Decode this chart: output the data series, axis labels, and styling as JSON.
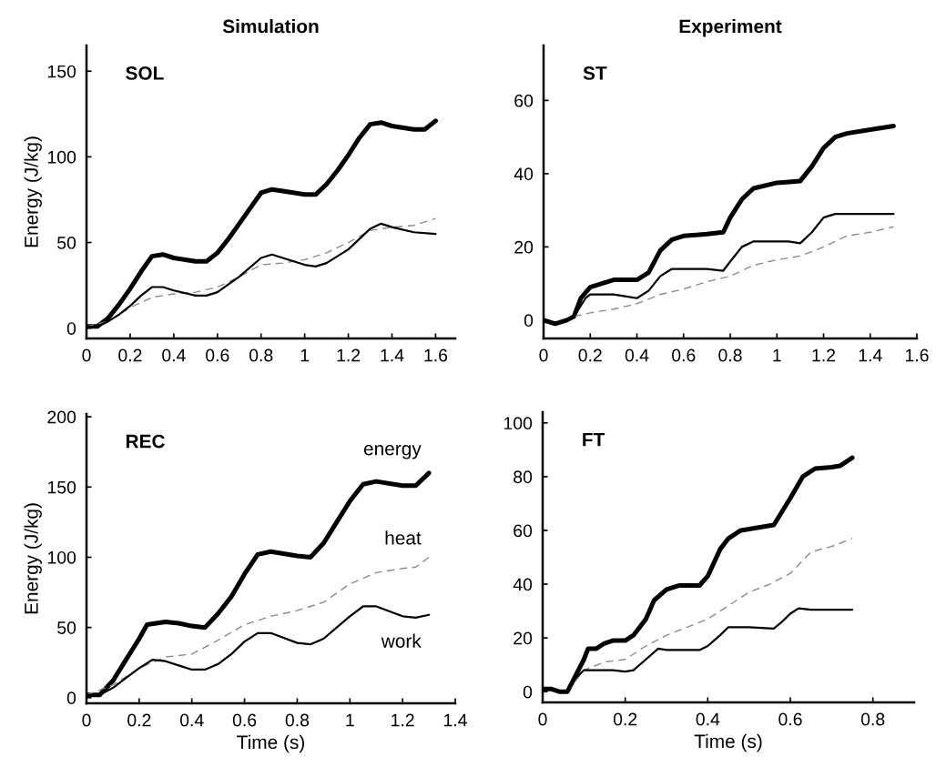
{
  "chart_data": [
    {
      "type": "line",
      "title": "Simulation",
      "ylabel": "Energy (J/kg)",
      "annotations": [
        "SOL"
      ],
      "xlim": [
        0,
        1.69
      ],
      "xticks": [
        0,
        0.2,
        0.4,
        0.6,
        0.8,
        1,
        1.2,
        1.4,
        1.6
      ],
      "ylim": [
        -6,
        165
      ],
      "yticks": [
        0,
        50,
        100,
        150
      ],
      "grid": false,
      "legend": false,
      "series": [
        {
          "color": "#000000",
          "x": [
            0,
            0.05,
            0.1,
            0.15,
            0.2,
            0.25,
            0.3,
            0.35,
            0.4,
            0.5,
            0.55,
            0.6,
            0.65,
            0.7,
            0.75,
            0.8,
            0.85,
            0.9,
            1.0,
            1.05,
            1.1,
            1.15,
            1.2,
            1.25,
            1.3,
            1.35,
            1.4,
            1.5,
            1.55,
            1.6
          ],
          "values": [
            1,
            1,
            6,
            14,
            23,
            33,
            42,
            43,
            41,
            39,
            39,
            44,
            52,
            61,
            70,
            79,
            81,
            80,
            78,
            78,
            84,
            92,
            101,
            111,
            119,
            120,
            118,
            116,
            116,
            121
          ]
        },
        {
          "color": "#8c8c8c",
          "line_style": "dashed",
          "x": [
            0,
            0.1,
            0.2,
            0.3,
            0.4,
            0.5,
            0.6,
            0.7,
            0.8,
            0.9,
            1.0,
            1.1,
            1.2,
            1.3,
            1.4,
            1.5,
            1.6
          ],
          "values": [
            1,
            4,
            12,
            18,
            20,
            21,
            24,
            30,
            37,
            38,
            40,
            44,
            50,
            57,
            59,
            60,
            64
          ]
        },
        {
          "color": "#000000",
          "x": [
            0,
            0.05,
            0.1,
            0.15,
            0.2,
            0.25,
            0.3,
            0.35,
            0.4,
            0.5,
            0.55,
            0.6,
            0.7,
            0.8,
            0.85,
            0.9,
            1.0,
            1.05,
            1.1,
            1.2,
            1.3,
            1.35,
            1.4,
            1.5,
            1.6
          ],
          "values": [
            1,
            1,
            4,
            8,
            13,
            19,
            24,
            24,
            22,
            19,
            19,
            21,
            30,
            41,
            43,
            41,
            37,
            36,
            38,
            46,
            58,
            61,
            59,
            56,
            55
          ]
        }
      ]
    },
    {
      "type": "line",
      "title": "Experiment",
      "annotations": [
        "ST"
      ],
      "xlim": [
        0,
        1.6
      ],
      "xticks": [
        0,
        0.2,
        0.4,
        0.6,
        0.8,
        1,
        1.2,
        1.4,
        1.6
      ],
      "ylim": [
        -5,
        75
      ],
      "yticks": [
        0,
        20,
        40,
        60
      ],
      "grid": false,
      "legend": false,
      "series": [
        {
          "color": "#000000",
          "x": [
            0,
            0.05,
            0.1,
            0.13,
            0.16,
            0.2,
            0.25,
            0.3,
            0.4,
            0.45,
            0.5,
            0.55,
            0.6,
            0.7,
            0.77,
            0.8,
            0.85,
            0.9,
            1.0,
            1.1,
            1.15,
            1.2,
            1.25,
            1.3,
            1.4,
            1.5
          ],
          "values": [
            0,
            -1,
            0,
            1,
            6,
            9,
            10,
            11,
            11,
            13,
            19,
            22,
            23,
            23.5,
            24,
            28,
            33,
            36,
            37.5,
            38,
            42,
            47,
            50,
            51,
            52,
            53
          ]
        },
        {
          "color": "#8c8c8c",
          "line_style": "dashed",
          "x": [
            0.13,
            0.2,
            0.3,
            0.4,
            0.5,
            0.6,
            0.7,
            0.8,
            0.9,
            1.0,
            1.1,
            1.2,
            1.3,
            1.4,
            1.5
          ],
          "values": [
            1,
            2,
            3,
            4.5,
            7,
            8.5,
            10.5,
            12,
            15,
            16.5,
            17.5,
            20,
            23,
            24,
            25.5
          ]
        },
        {
          "color": "#000000",
          "x": [
            0,
            0.05,
            0.1,
            0.13,
            0.18,
            0.2,
            0.3,
            0.35,
            0.4,
            0.45,
            0.5,
            0.55,
            0.6,
            0.7,
            0.77,
            0.8,
            0.85,
            0.9,
            1.0,
            1.05,
            1.1,
            1.15,
            1.2,
            1.25,
            1.4,
            1.5
          ],
          "values": [
            0,
            -1,
            0,
            1,
            6,
            7,
            7,
            6.5,
            6,
            8,
            12,
            14,
            14,
            14,
            13.5,
            16,
            20,
            21.5,
            21.5,
            21.5,
            21,
            24,
            28,
            29,
            29,
            29
          ]
        }
      ]
    },
    {
      "type": "line",
      "xlabel": "Time (s)",
      "ylabel": "Energy (J/kg)",
      "annotations": [
        "REC"
      ],
      "xlim": [
        0,
        1.4
      ],
      "xticks": [
        0,
        0.2,
        0.4,
        0.6,
        0.8,
        1,
        1.2,
        1.4
      ],
      "ylim": [
        -4,
        202
      ],
      "yticks": [
        0,
        50,
        100,
        150,
        200
      ],
      "grid": false,
      "legend": false,
      "series": [
        {
          "name": "energy",
          "color": "#000000",
          "x": [
            0,
            0.05,
            0.1,
            0.15,
            0.2,
            0.23,
            0.3,
            0.35,
            0.4,
            0.45,
            0.5,
            0.55,
            0.6,
            0.65,
            0.7,
            0.8,
            0.85,
            0.9,
            0.95,
            1.0,
            1.05,
            1.1,
            1.2,
            1.25,
            1.3
          ],
          "values": [
            2,
            2,
            12,
            27,
            42,
            52,
            54,
            53,
            51,
            50,
            60,
            72,
            88,
            102,
            104,
            101,
            100,
            110,
            125,
            140,
            152,
            154,
            151,
            151,
            160
          ]
        },
        {
          "name": "heat",
          "color": "#8c8c8c",
          "line_style": "dashed",
          "x": [
            0,
            0.1,
            0.2,
            0.3,
            0.4,
            0.5,
            0.6,
            0.7,
            0.8,
            0.9,
            1.0,
            1.1,
            1.2,
            1.25,
            1.3
          ],
          "values": [
            2,
            9,
            21,
            29,
            31,
            41,
            52,
            58,
            62,
            68,
            81,
            89,
            92,
            93,
            100
          ]
        },
        {
          "name": "work",
          "color": "#000000",
          "x": [
            0,
            0.05,
            0.1,
            0.15,
            0.2,
            0.25,
            0.3,
            0.35,
            0.4,
            0.45,
            0.5,
            0.55,
            0.6,
            0.65,
            0.7,
            0.8,
            0.85,
            0.9,
            0.95,
            1.0,
            1.05,
            1.1,
            1.2,
            1.25,
            1.3
          ],
          "values": [
            2,
            2,
            7,
            14,
            21,
            27,
            26,
            23,
            20,
            20,
            24,
            31,
            40,
            46,
            46,
            39,
            38,
            42,
            50,
            58,
            65,
            65,
            58,
            57,
            59
          ]
        }
      ]
    },
    {
      "type": "line",
      "xlabel": "Time (s)",
      "annotations": [
        "FT"
      ],
      "xlim": [
        0,
        0.9
      ],
      "xticks": [
        0,
        0.2,
        0.4,
        0.6,
        0.8
      ],
      "ylim": [
        -4,
        104
      ],
      "yticks": [
        0,
        20,
        40,
        60,
        80,
        100
      ],
      "grid": false,
      "legend": false,
      "series": [
        {
          "color": "#000000",
          "x": [
            0,
            0.02,
            0.04,
            0.06,
            0.08,
            0.1,
            0.11,
            0.13,
            0.15,
            0.17,
            0.2,
            0.22,
            0.25,
            0.27,
            0.3,
            0.33,
            0.38,
            0.4,
            0.43,
            0.45,
            0.48,
            0.52,
            0.56,
            0.6,
            0.63,
            0.66,
            0.7,
            0.72,
            0.75
          ],
          "values": [
            1,
            1,
            0,
            0,
            6,
            12,
            16,
            16,
            18,
            19,
            19,
            21,
            27,
            34,
            38,
            39.5,
            39.5,
            43,
            53,
            57,
            60,
            61,
            62,
            72,
            80,
            83,
            83.5,
            84,
            87
          ]
        },
        {
          "color": "#8c8c8c",
          "line_style": "dashed",
          "x": [
            0.06,
            0.1,
            0.15,
            0.2,
            0.25,
            0.3,
            0.35,
            0.4,
            0.45,
            0.5,
            0.55,
            0.6,
            0.65,
            0.7,
            0.75
          ],
          "values": [
            0,
            8,
            11,
            12,
            17,
            21,
            24,
            27,
            32,
            37,
            40,
            44,
            52,
            54,
            57
          ]
        },
        {
          "color": "#000000",
          "x": [
            0,
            0.02,
            0.04,
            0.06,
            0.08,
            0.1,
            0.13,
            0.17,
            0.2,
            0.22,
            0.25,
            0.28,
            0.3,
            0.38,
            0.4,
            0.43,
            0.45,
            0.5,
            0.56,
            0.58,
            0.6,
            0.62,
            0.65,
            0.75
          ],
          "values": [
            1,
            1,
            0,
            0,
            5,
            8,
            8,
            8,
            7.5,
            8,
            12,
            16,
            15.5,
            15.5,
            17,
            21,
            24,
            24,
            23.5,
            26,
            29,
            31,
            30.5,
            30.5
          ]
        }
      ]
    }
  ]
}
